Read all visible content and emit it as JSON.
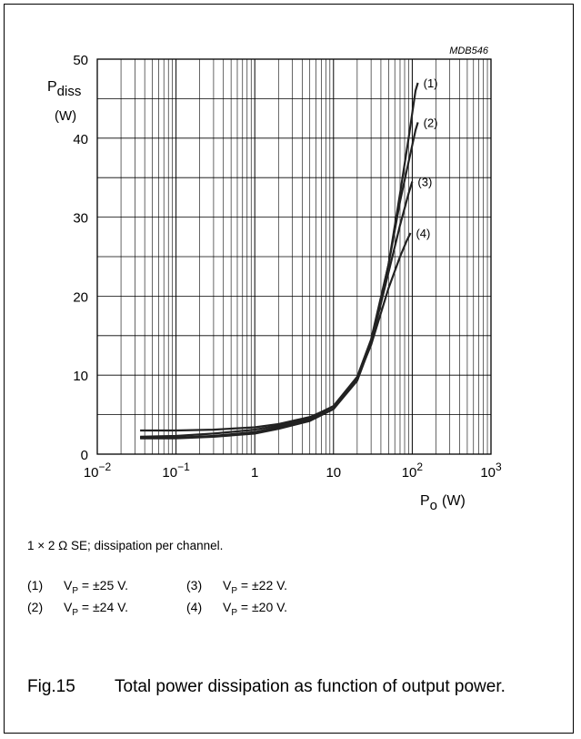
{
  "chart_data": {
    "type": "line",
    "code": "MDB546",
    "ylabel_main": "P",
    "ylabel_sub": "diss",
    "ylabel_unit": "(W)",
    "xlabel_main": "P",
    "xlabel_sub": "o",
    "xlabel_unit": "(W)",
    "xscale": "log",
    "xlim": [
      0.01,
      1000
    ],
    "ylim": [
      0,
      50
    ],
    "y_ticks": [
      "0",
      "10",
      "20",
      "30",
      "40",
      "50"
    ],
    "x_ticks": [
      {
        "base": "10",
        "exp": "−2",
        "value": 0.01
      },
      {
        "base": "10",
        "exp": "−1",
        "value": 0.1
      },
      {
        "base": "1",
        "exp": "",
        "value": 1
      },
      {
        "base": "10",
        "exp": "",
        "value": 10
      },
      {
        "base": "10",
        "exp": "2",
        "value": 100
      },
      {
        "base": "10",
        "exp": "3",
        "value": 1000
      }
    ],
    "grid": true,
    "series": [
      {
        "name": "(1)",
        "x": [
          0.035,
          0.1,
          0.3,
          1,
          2,
          5,
          10,
          20,
          30,
          50,
          70,
          90,
          110,
          118
        ],
        "y": [
          3.0,
          3.0,
          3.1,
          3.4,
          3.8,
          4.7,
          6.0,
          9.5,
          14,
          24,
          33,
          40,
          46,
          47
        ]
      },
      {
        "name": "(2)",
        "x": [
          0.035,
          0.1,
          0.3,
          1,
          2,
          5,
          10,
          20,
          30,
          50,
          70,
          90,
          110,
          118
        ],
        "y": [
          2.2,
          2.3,
          2.6,
          3.1,
          3.6,
          4.6,
          6.1,
          9.8,
          14.5,
          24,
          32,
          37,
          41,
          42
        ]
      },
      {
        "name": "(3)",
        "x": [
          0.035,
          0.1,
          0.3,
          1,
          2,
          5,
          10,
          20,
          30,
          50,
          70,
          90,
          100
        ],
        "y": [
          2.0,
          2.0,
          2.2,
          2.6,
          3.2,
          4.2,
          5.7,
          9.3,
          14,
          23,
          29,
          33,
          34.5
        ]
      },
      {
        "name": "(4)",
        "x": [
          0.035,
          0.1,
          0.3,
          1,
          2,
          5,
          10,
          20,
          30,
          50,
          70,
          85,
          95
        ],
        "y": [
          2.1,
          2.1,
          2.3,
          2.8,
          3.4,
          4.4,
          6.0,
          9.6,
          13.8,
          21,
          25,
          27,
          28
        ]
      }
    ]
  },
  "note": {
    "text": "1 × 2 Ω SE; dissipation per channel."
  },
  "legend": [
    {
      "num": "(1)",
      "sym": "V",
      "sub": "P",
      "value": " = ±25 V."
    },
    {
      "num": "(3)",
      "sym": "V",
      "sub": "P",
      "value": " = ±22 V."
    },
    {
      "num": "(2)",
      "sym": "V",
      "sub": "P",
      "value": " = ±24 V."
    },
    {
      "num": "(4)",
      "sym": "V",
      "sub": "P",
      "value": " = ±20 V."
    }
  ],
  "caption": {
    "fig": "Fig.15",
    "text": "Total power dissipation as function of output power."
  }
}
